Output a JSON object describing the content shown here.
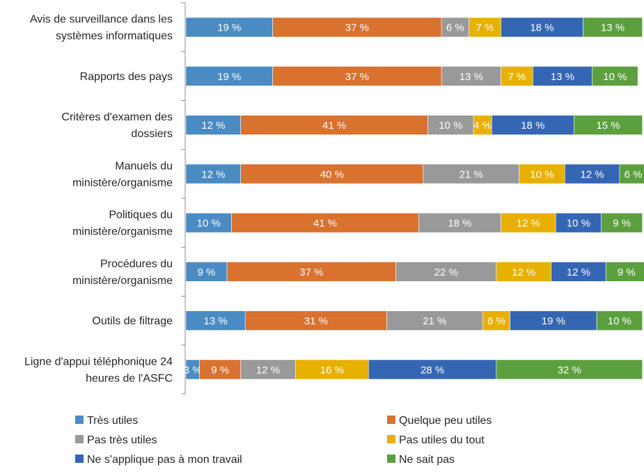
{
  "chart_data": {
    "type": "bar",
    "orientation": "horizontal",
    "stacked": true,
    "title": "",
    "xlabel": "",
    "ylabel": "",
    "xlim": [
      0,
      100
    ],
    "grid": false,
    "legend_position": "bottom",
    "categories": [
      [
        "Avis de surveillance dans les",
        "systèmes informatiques"
      ],
      [
        "Rapports des pays"
      ],
      [
        "Critères d'examen des",
        "dossiers"
      ],
      [
        "Manuels du",
        "ministère/organisme"
      ],
      [
        "Politiques du",
        "ministère/organisme"
      ],
      [
        "Procédures du",
        "ministère/organisme"
      ],
      [
        "Outils de filtrage"
      ],
      [
        "Ligne d'appui téléphonique 24",
        "heures de l'ASFC"
      ]
    ],
    "series": [
      {
        "name": "Très utiles",
        "color": "#4A8BC4",
        "values": [
          19,
          19,
          12,
          12,
          10,
          9,
          13,
          3
        ],
        "labels": [
          "19 %",
          "19 %",
          "12 %",
          "12 %",
          "10 %",
          "9 %",
          "13 %",
          "3 %"
        ]
      },
      {
        "name": "Quelque peu utiles",
        "color": "#D9712F",
        "values": [
          37,
          37,
          41,
          40,
          41,
          37,
          31,
          9
        ],
        "labels": [
          "37 %",
          "37 %",
          "41 %",
          "40 %",
          "41 %",
          "37 %",
          "31 %",
          "9 %"
        ]
      },
      {
        "name": "Pas très utiles",
        "color": "#999999",
        "values": [
          6,
          13,
          10,
          21,
          18,
          22,
          21,
          12
        ],
        "labels": [
          "6 %",
          "13 %",
          "10 %",
          "21 %",
          "18 %",
          "22 %",
          "21 %",
          "12 %"
        ]
      },
      {
        "name": "Pas utiles du tout",
        "color": "#E8B000",
        "values": [
          7,
          7,
          4,
          10,
          12,
          12,
          6,
          16
        ],
        "labels": [
          "7 %",
          "7 %",
          "4 %",
          "10 %",
          "12 %",
          "12 %",
          "6 %",
          "16 %"
        ]
      },
      {
        "name": "Ne s'applique pas à mon travail",
        "color": "#3566B4",
        "values": [
          18,
          13,
          18,
          12,
          10,
          12,
          19,
          28
        ],
        "labels": [
          "18 %",
          "13 %",
          "18 %",
          "12 %",
          "10 %",
          "12 %",
          "19 %",
          "28 %"
        ]
      },
      {
        "name": "Ne sait pas",
        "color": "#5C9F3E",
        "values": [
          13,
          10,
          15,
          6,
          9,
          9,
          10,
          32
        ],
        "labels": [
          "13 %",
          "10 %",
          "15 %",
          "6 %",
          "9 %",
          "9 %",
          "10 %",
          "32 %"
        ]
      }
    ]
  }
}
